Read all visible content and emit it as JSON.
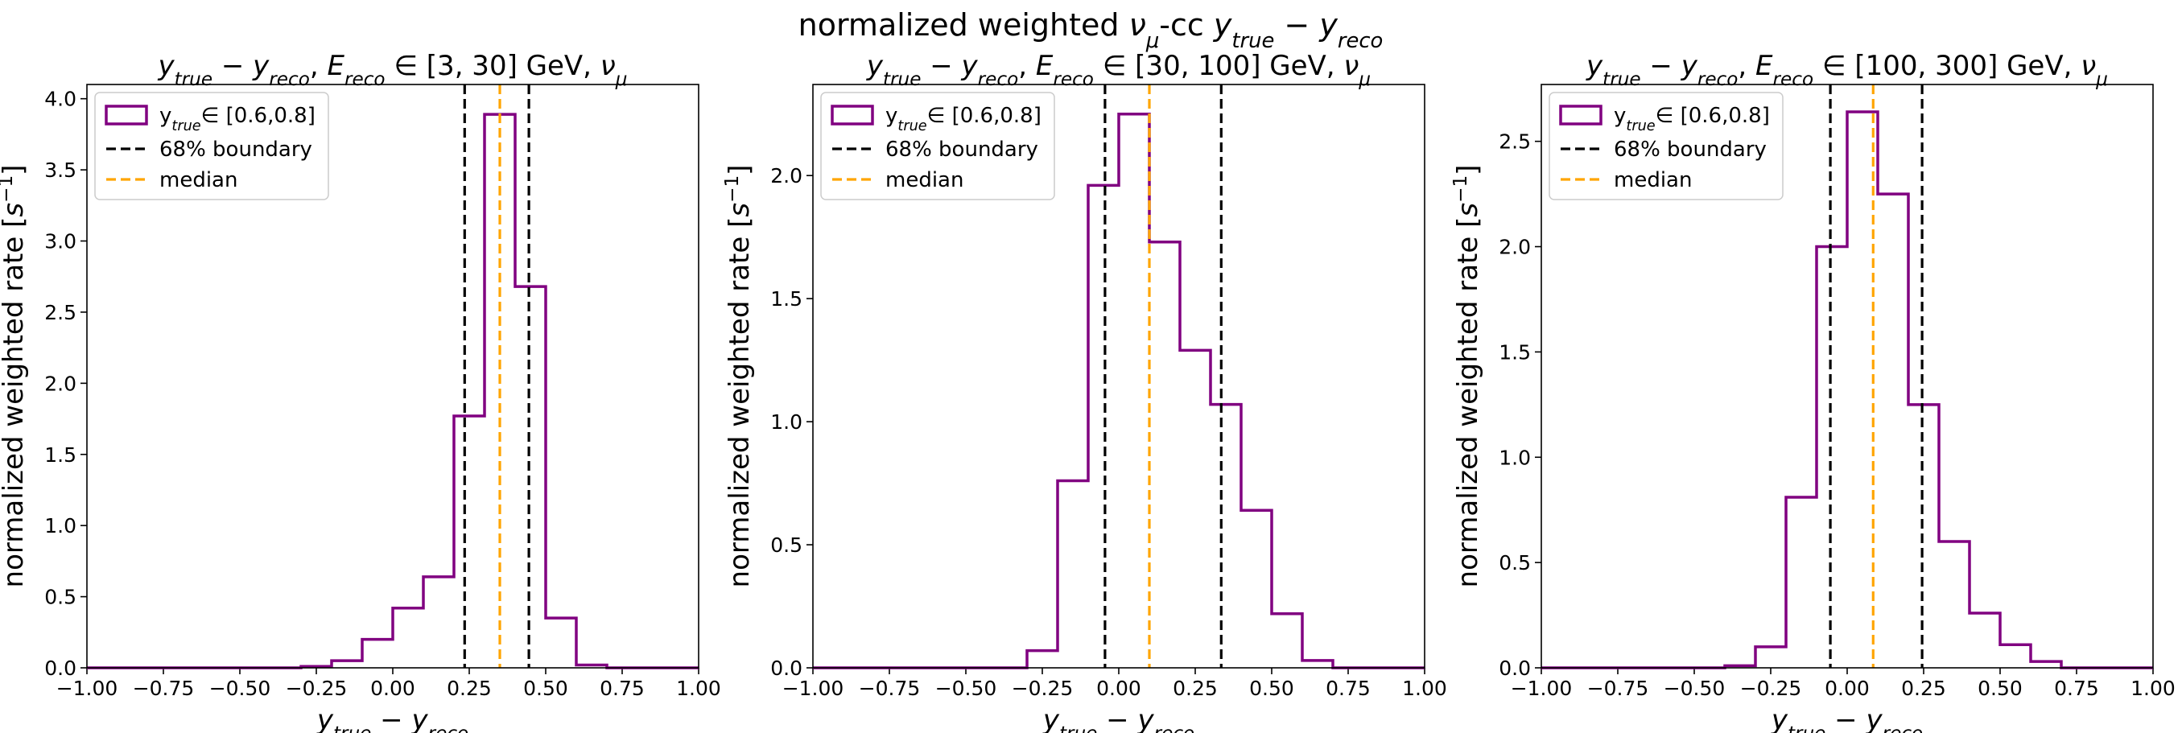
{
  "figure": {
    "suptitle_parts": [
      "normalized weighted ",
      "ν",
      "μ",
      "-cc ",
      "y",
      "true",
      " − ",
      "y",
      "reco"
    ]
  },
  "chart_data": [
    {
      "type": "bar",
      "title_range": "∈ [3, 30] GeV, ",
      "xlabel_parts": [
        "y",
        "true",
        " − ",
        "y",
        "reco"
      ],
      "ylabel_parts": [
        "normalized weighted rate [",
        "s",
        "−1",
        "]"
      ],
      "xlim": [
        -1.0,
        1.0
      ],
      "ylim": [
        0,
        4.1
      ],
      "xticks": [
        "−1.00",
        "−0.75",
        "−0.50",
        "−0.25",
        "0.00",
        "0.25",
        "0.50",
        "0.75",
        "1.00"
      ],
      "yticks": [
        "0.0",
        "0.5",
        "1.0",
        "1.5",
        "2.0",
        "2.5",
        "3.0",
        "3.5",
        "4.0"
      ],
      "ytick_values": [
        0,
        0.5,
        1.0,
        1.5,
        2.0,
        2.5,
        3.0,
        3.5,
        4.0
      ],
      "bin_edges": [
        -1.0,
        -0.9,
        -0.8,
        -0.7,
        -0.6,
        -0.5,
        -0.4,
        -0.3,
        -0.2,
        -0.1,
        0.0,
        0.1,
        0.2,
        0.3,
        0.4,
        0.5,
        0.6,
        0.7,
        0.8,
        0.9,
        1.0
      ],
      "values": [
        0,
        0,
        0,
        0,
        0,
        0,
        0,
        0.01,
        0.05,
        0.2,
        0.42,
        0.64,
        1.77,
        3.89,
        2.68,
        0.35,
        0.02,
        0,
        0,
        0
      ],
      "boundary_low": 0.235,
      "boundary_high": 0.445,
      "median": 0.35,
      "legend": {
        "series_label_prefix": "y",
        "series_label_sub": "true",
        "series_label_rest": "∈  [0.6,0.8]",
        "boundary_label": "68% boundary",
        "median_label": "median",
        "placement": "upper-left"
      }
    },
    {
      "type": "bar",
      "title_range": "∈ [30, 100] GeV, ",
      "xlabel_parts": [
        "y",
        "true",
        " − ",
        "y",
        "reco"
      ],
      "ylabel_parts": [
        "normalized weighted rate [",
        "s",
        "−1",
        "]"
      ],
      "xlim": [
        -1.0,
        1.0
      ],
      "ylim": [
        0,
        2.37
      ],
      "xticks": [
        "−1.00",
        "−0.75",
        "−0.50",
        "−0.25",
        "0.00",
        "0.25",
        "0.50",
        "0.75",
        "1.00"
      ],
      "yticks": [
        "0.0",
        "0.5",
        "1.0",
        "1.5",
        "2.0"
      ],
      "ytick_values": [
        0,
        0.5,
        1.0,
        1.5,
        2.0
      ],
      "bin_edges": [
        -1.0,
        -0.9,
        -0.8,
        -0.7,
        -0.6,
        -0.5,
        -0.4,
        -0.3,
        -0.2,
        -0.1,
        0.0,
        0.1,
        0.2,
        0.3,
        0.4,
        0.5,
        0.6,
        0.7,
        0.8,
        0.9,
        1.0
      ],
      "values": [
        0,
        0,
        0,
        0,
        0,
        0,
        0,
        0.07,
        0.76,
        1.96,
        2.25,
        1.73,
        1.29,
        1.07,
        0.64,
        0.22,
        0.03,
        0,
        0,
        0
      ],
      "boundary_low": -0.045,
      "boundary_high": 0.335,
      "median": 0.1,
      "legend": {
        "series_label_prefix": "y",
        "series_label_sub": "true",
        "series_label_rest": "∈  [0.6,0.8]",
        "boundary_label": "68% boundary",
        "median_label": "median",
        "placement": "upper-left"
      }
    },
    {
      "type": "bar",
      "title_range": "∈ [100, 300] GeV, ",
      "xlabel_parts": [
        "y",
        "true",
        " − ",
        "y",
        "reco"
      ],
      "ylabel_parts": [
        "normalized weighted rate [",
        "s",
        "−1",
        "]"
      ],
      "xlim": [
        -1.0,
        1.0
      ],
      "ylim": [
        0,
        2.77
      ],
      "xticks": [
        "−1.00",
        "−0.75",
        "−0.50",
        "−0.25",
        "0.00",
        "0.25",
        "0.50",
        "0.75",
        "1.00"
      ],
      "yticks": [
        "0.0",
        "0.5",
        "1.0",
        "1.5",
        "2.0",
        "2.5"
      ],
      "ytick_values": [
        0,
        0.5,
        1.0,
        1.5,
        2.0,
        2.5
      ],
      "bin_edges": [
        -1.0,
        -0.9,
        -0.8,
        -0.7,
        -0.6,
        -0.5,
        -0.4,
        -0.3,
        -0.2,
        -0.1,
        0.0,
        0.1,
        0.2,
        0.3,
        0.4,
        0.5,
        0.6,
        0.7,
        0.8,
        0.9,
        1.0
      ],
      "values": [
        0,
        0,
        0,
        0,
        0,
        0,
        0.01,
        0.1,
        0.81,
        2.0,
        2.64,
        2.25,
        1.25,
        0.6,
        0.26,
        0.11,
        0.03,
        0,
        0,
        0
      ],
      "boundary_low": -0.055,
      "boundary_high": 0.245,
      "median": 0.085,
      "legend": {
        "series_label_prefix": "y",
        "series_label_sub": "true",
        "series_label_rest": "∈  [0.6,0.8]",
        "boundary_label": "68% boundary",
        "median_label": "median",
        "placement": "upper-left"
      }
    }
  ],
  "colors": {
    "histogram": "#800080",
    "boundary": "#000000",
    "median": "#FFA500"
  }
}
